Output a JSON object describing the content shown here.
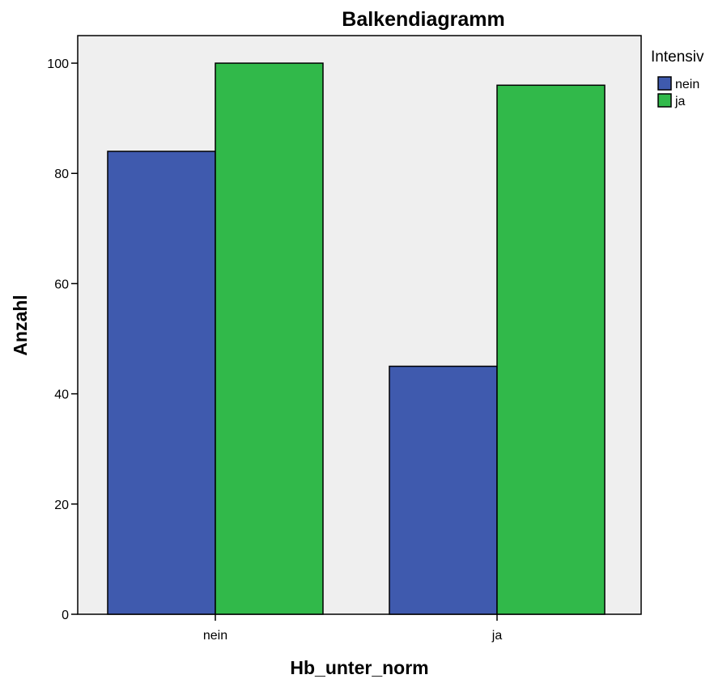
{
  "chart_data": {
    "type": "bar",
    "title": "Balkendiagramm",
    "xlabel": "Hb_unter_norm",
    "ylabel": "Anzahl",
    "categories": [
      "nein",
      "ja"
    ],
    "series": [
      {
        "name": "nein",
        "values": [
          84,
          45
        ],
        "color": "#3f5aae"
      },
      {
        "name": "ja",
        "values": [
          100,
          96
        ],
        "color": "#31b94a"
      }
    ],
    "yticks": [
      "0",
      "20",
      "40",
      "60",
      "80",
      "100"
    ],
    "ylim": [
      0,
      105
    ],
    "legend": {
      "title": "Intensiv",
      "position": "top-right"
    },
    "plot_background": "#efefef",
    "grid": false
  }
}
